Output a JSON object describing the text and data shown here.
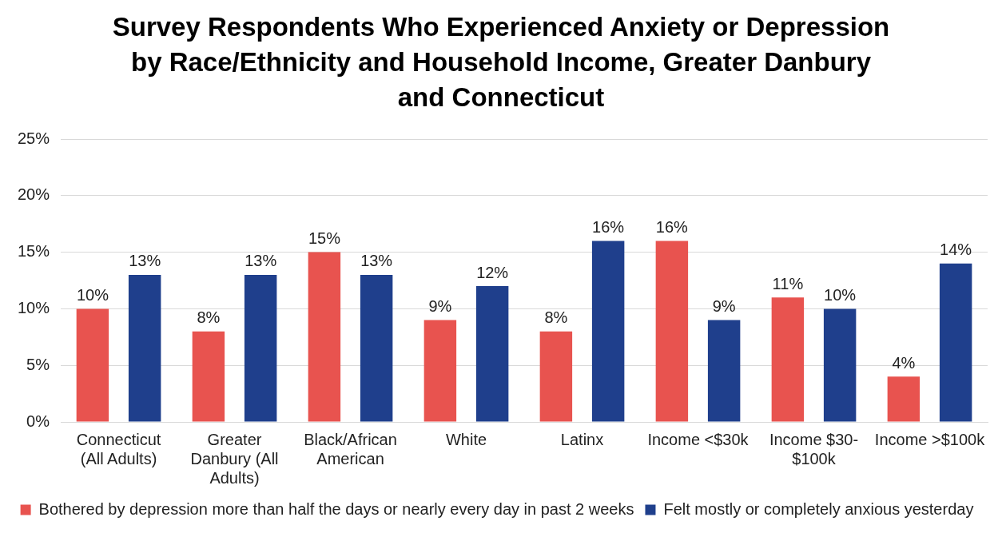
{
  "chart_data": {
    "type": "bar",
    "title": "Survey Respondents Who Experienced Anxiety or Depression by Race/Ethnicity and Household Income, Greater Danbury and Connecticut",
    "categories": [
      "Connecticut (All Adults)",
      "Greater Danbury (All Adults)",
      "Black/African American",
      "White",
      "Latinx",
      "Income <$30k",
      "Income $30-$100k",
      "Income >$100k"
    ],
    "series": [
      {
        "name": "Bothered by depression more than half the days or nearly every day in past 2 weeks",
        "color": "#e8534f",
        "values": [
          10,
          8,
          15,
          9,
          8,
          16,
          11,
          4
        ],
        "value_labels": [
          "10%",
          "8%",
          "15%",
          "9%",
          "8%",
          "16%",
          "11%",
          "4%"
        ]
      },
      {
        "name": "Felt mostly or completely anxious yesterday",
        "color": "#1f3f8c",
        "values": [
          13,
          13,
          13,
          12,
          16,
          9,
          10,
          14
        ],
        "value_labels": [
          "13%",
          "13%",
          "13%",
          "12%",
          "16%",
          "9%",
          "10%",
          "14%"
        ]
      }
    ],
    "ylim": [
      0,
      25
    ],
    "yticks": [
      {
        "value": 0,
        "label": "0%"
      },
      {
        "value": 5,
        "label": "5%"
      },
      {
        "value": 10,
        "label": "10%"
      },
      {
        "value": 15,
        "label": "15%"
      },
      {
        "value": 20,
        "label": "20%"
      },
      {
        "value": 25,
        "label": "25%"
      }
    ],
    "grid": "y",
    "legend": "bottom"
  }
}
